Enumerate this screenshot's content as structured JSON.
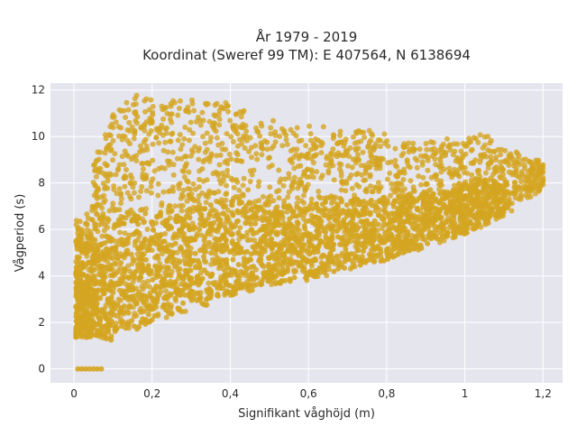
{
  "chart_data": {
    "type": "scatter",
    "title_line1": "År 1979 - 2019",
    "title_line2": "Koordinat (Sweref 99 TM): E 407564, N 6138694",
    "xlabel": "Signifikant våghöjd (m)",
    "ylabel": "Vågperiod (s)",
    "xlim": [
      -0.06,
      1.25
    ],
    "ylim": [
      -0.6,
      12.3
    ],
    "x_ticks": [
      0,
      0.2,
      0.4,
      0.6,
      0.8,
      1,
      1.2
    ],
    "x_tick_labels": [
      "0",
      "0,2",
      "0,4",
      "0,6",
      "0,8",
      "1",
      "1,2"
    ],
    "y_ticks": [
      0,
      2,
      4,
      6,
      8,
      10,
      12
    ],
    "y_tick_labels": [
      "0",
      "2",
      "4",
      "6",
      "8",
      "10",
      "12"
    ],
    "grid": true,
    "colors": {
      "marker": "#d4a520",
      "plot_bg": "#e5e5ee",
      "grid": "#ffffff"
    },
    "description_series": {
      "lower_envelope": [
        [
          0.0,
          1.4
        ],
        [
          0.1,
          1.2
        ],
        [
          0.2,
          2.0
        ],
        [
          0.3,
          2.6
        ],
        [
          0.4,
          3.1
        ],
        [
          0.5,
          3.6
        ],
        [
          0.6,
          3.9
        ],
        [
          0.7,
          4.3
        ],
        [
          0.8,
          4.7
        ],
        [
          0.9,
          5.3
        ],
        [
          1.0,
          5.8
        ],
        [
          1.1,
          6.6
        ],
        [
          1.2,
          7.8
        ]
      ],
      "upper_envelope": [
        [
          0.03,
          6.5
        ],
        [
          0.05,
          9.0
        ],
        [
          0.1,
          11.0
        ],
        [
          0.15,
          11.8
        ],
        [
          0.25,
          11.6
        ],
        [
          0.4,
          11.5
        ],
        [
          0.55,
          10.5
        ],
        [
          0.7,
          10.4
        ],
        [
          0.82,
          10.1
        ],
        [
          0.95,
          9.9
        ],
        [
          1.05,
          10.3
        ],
        [
          1.1,
          9.5
        ],
        [
          1.2,
          9.0
        ]
      ],
      "zero_period_points": [
        [
          0.01,
          0
        ],
        [
          0.02,
          0
        ],
        [
          0.03,
          0
        ],
        [
          0.04,
          0
        ],
        [
          0.05,
          0
        ],
        [
          0.06,
          0
        ],
        [
          0.07,
          0
        ]
      ]
    }
  }
}
